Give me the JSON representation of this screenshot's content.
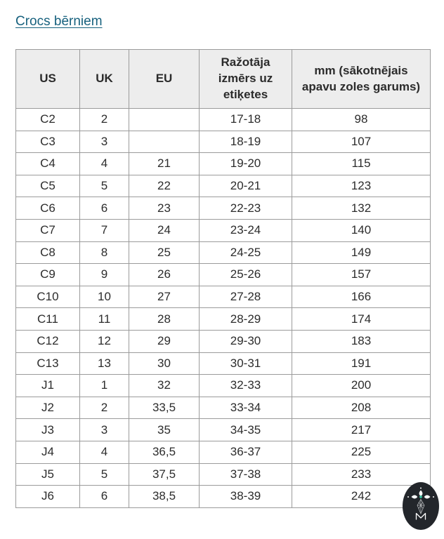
{
  "page": {
    "title": "Crocs bērniem"
  },
  "table": {
    "headers": [
      "US",
      "UK",
      "EU",
      "Ražotāja izmērs uz etiķetes",
      "mm (sākotnējais apavu zoles garums)"
    ],
    "rows": [
      [
        "C2",
        "2",
        "",
        "17-18",
        "98"
      ],
      [
        "C3",
        "3",
        "",
        "18-19",
        "107"
      ],
      [
        "C4",
        "4",
        "21",
        "19-20",
        "115"
      ],
      [
        "C5",
        "5",
        "22",
        "20-21",
        "123"
      ],
      [
        "C6",
        "6",
        "23",
        "22-23",
        "132"
      ],
      [
        "C7",
        "7",
        "24",
        "23-24",
        "140"
      ],
      [
        "C8",
        "8",
        "25",
        "24-25",
        "149"
      ],
      [
        "C9",
        "9",
        "26",
        "25-26",
        "157"
      ],
      [
        "C10",
        "10",
        "27",
        "27-28",
        "166"
      ],
      [
        "C11",
        "11",
        "28",
        "28-29",
        "174"
      ],
      [
        "C12",
        "12",
        "29",
        "29-30",
        "183"
      ],
      [
        "C13",
        "13",
        "30",
        "30-31",
        "191"
      ],
      [
        "J1",
        "1",
        "32",
        "32-33",
        "200"
      ],
      [
        "J2",
        "2",
        "33,5",
        "33-34",
        "208"
      ],
      [
        "J3",
        "3",
        "35",
        "34-35",
        "217"
      ],
      [
        "J4",
        "4",
        "36,5",
        "36-37",
        "225"
      ],
      [
        "J5",
        "5",
        "37,5",
        "37-38",
        "233"
      ],
      [
        "J6",
        "6",
        "38,5",
        "38-39",
        "242"
      ]
    ]
  },
  "badge": {
    "letter": "M",
    "bg_color": "#23262b",
    "accent_color": "#38c3a2",
    "fg_color": "#ffffff"
  },
  "colors": {
    "link": "#17617e",
    "border": "#9b9b9b",
    "header_bg": "#ededed",
    "text": "#2c2c2c"
  }
}
